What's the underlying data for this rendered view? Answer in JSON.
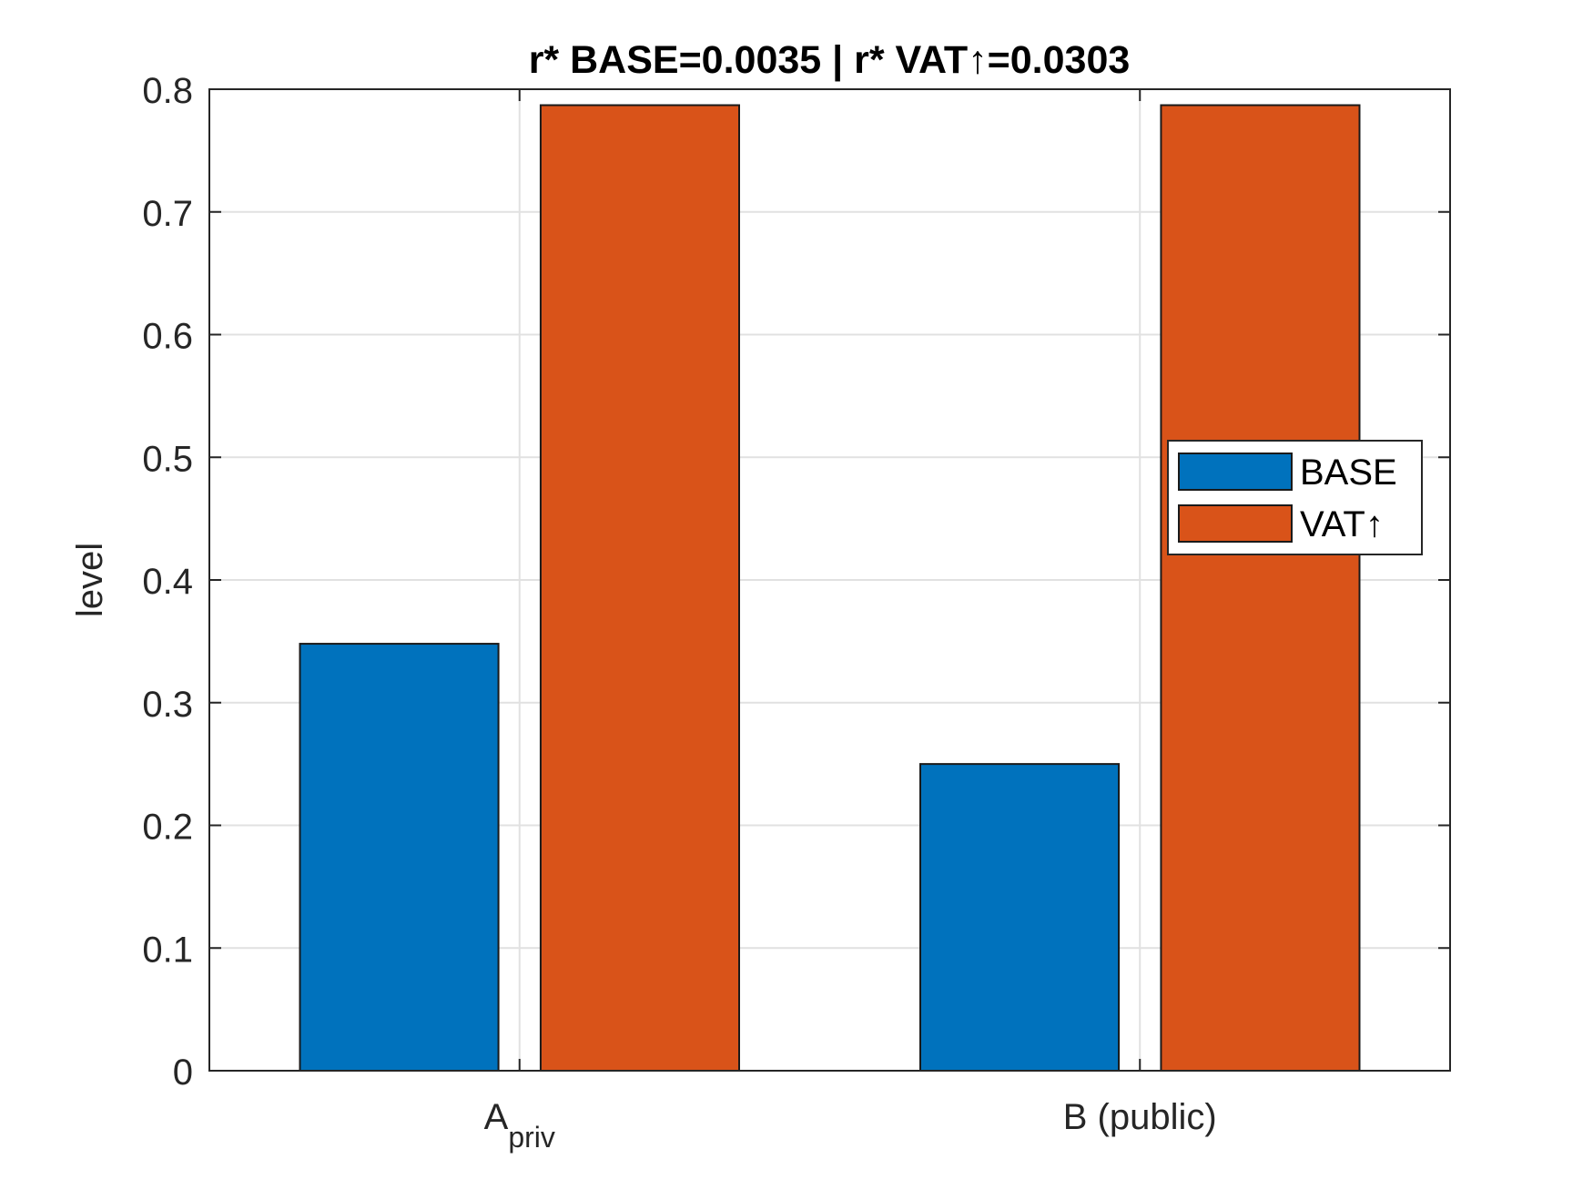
{
  "chart_data": {
    "type": "bar",
    "title": "r* BASE=0.0035 | r* VAT↑=0.0303",
    "xlabel": "",
    "ylabel": "level",
    "categories": [
      {
        "main": "A",
        "sub": "priv"
      },
      {
        "main": "B (public)",
        "sub": ""
      }
    ],
    "series": [
      {
        "name": "BASE",
        "color": "#0072BD",
        "values": [
          0.348,
          0.25
        ]
      },
      {
        "name": "VAT↑",
        "color": "#D95319",
        "values": [
          0.787,
          0.787
        ]
      }
    ],
    "ylim": [
      0,
      0.8
    ],
    "yticks": [
      "0",
      "0.1",
      "0.2",
      "0.3",
      "0.4",
      "0.5",
      "0.6",
      "0.7",
      "0.8"
    ],
    "grid": true,
    "legend": {
      "position": "right"
    }
  }
}
